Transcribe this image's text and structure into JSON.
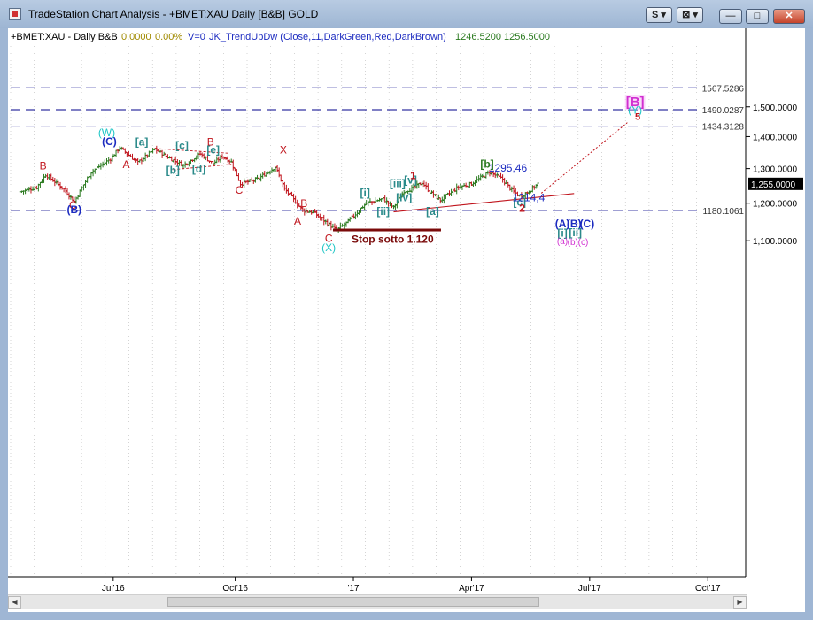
{
  "window": {
    "title": "TradeStation Chart Analysis - +BMET:XAU Daily [B&B] GOLD",
    "buttons": {
      "style_label": "S",
      "tools_label": "⊠",
      "minimize_label": "—",
      "maximize_label": "□",
      "close_label": "✕"
    }
  },
  "header": {
    "symbol": "+BMET:XAU - Daily  B&B",
    "change": "0.0000",
    "change_pct": "0.00%",
    "volume": "V=0",
    "indicator": "JK_TrendUpDw (Close,11,DarkGreen,Red,DarkBrown)",
    "ind_val1": "1246.5200",
    "ind_val2": "1256.5000"
  },
  "colors": {
    "up_bar": "#2a7a1f",
    "down_bar": "#c0141c",
    "level_line": "#00008b",
    "red": "#c0141c",
    "blue": "#1c2bc0",
    "teal": "#2a8a8a",
    "green": "#2a7a1f",
    "cyan": "#1fc6c6",
    "magenta": "#d12fd1"
  },
  "chart_data": {
    "type": "ohlc-bar",
    "y_scale": "log",
    "ylim": [
      1045,
      1625
    ],
    "x_ticks": [
      "Jul'16",
      "Oct'16",
      "'17",
      "Apr'17",
      "Jul'17",
      "Oct'17"
    ],
    "y_ticks": [
      "1,100.0000",
      "1,200.0000",
      "1,300.0000",
      "1,400.0000",
      "1,500.0000"
    ],
    "last_price": "1,255.0000",
    "levels": [
      {
        "value": 1567.5286,
        "label": "1567.5286"
      },
      {
        "value": 1490.0287,
        "label": "1490.0287"
      },
      {
        "value": 1434.3128,
        "label": "1434.3128"
      },
      {
        "value": 1180.1061,
        "label": "1180.1061"
      }
    ],
    "trend_line": {
      "label": "1214,4"
    },
    "projection": {
      "label": "projection"
    },
    "triangle": {
      "label": "triangle"
    },
    "stop_box": {
      "label": "Stop sotto 1.120"
    },
    "price_labels": [
      "1295,46",
      "1214,4"
    ],
    "waves": [
      {
        "text": "(W)",
        "color": "cyan"
      },
      {
        "text": "(C)",
        "color": "blue"
      },
      {
        "text": "B",
        "color": "red"
      },
      {
        "text": "C",
        "color": "red"
      },
      {
        "text": "(B)",
        "color": "blue"
      },
      {
        "text": "[a]",
        "color": "teal"
      },
      {
        "text": "A",
        "color": "red"
      },
      {
        "text": "[c]",
        "color": "teal"
      },
      {
        "text": "B",
        "color": "red"
      },
      {
        "text": "[e]",
        "color": "teal"
      },
      {
        "text": "[b]",
        "color": "teal"
      },
      {
        "text": "[d]",
        "color": "teal"
      },
      {
        "text": "C",
        "color": "red"
      },
      {
        "text": "X",
        "color": "red"
      },
      {
        "text": "B",
        "color": "red"
      },
      {
        "text": "A",
        "color": "red"
      },
      {
        "text": "C",
        "color": "red"
      },
      {
        "text": "(X)",
        "color": "cyan"
      },
      {
        "text": "[i]",
        "color": "teal"
      },
      {
        "text": "[ii]",
        "color": "teal"
      },
      {
        "text": "[iii]",
        "color": "teal"
      },
      {
        "text": "[iv]",
        "color": "teal"
      },
      {
        "text": "[v]",
        "color": "teal"
      },
      {
        "text": "1",
        "color": "red"
      },
      {
        "text": "[a]",
        "color": "teal"
      },
      {
        "text": "[b]",
        "color": "green"
      },
      {
        "text": "1295,46",
        "color": "blue"
      },
      {
        "text": "[c]",
        "color": "teal"
      },
      {
        "text": "2",
        "color": "red"
      },
      {
        "text": "1214,4",
        "color": "blue"
      },
      {
        "text": "[B]",
        "color": "magenta"
      },
      {
        "text": "(Y)",
        "color": "cyan"
      },
      {
        "text": "5",
        "color": "red"
      },
      {
        "text": "(A)",
        "color": "blue"
      },
      {
        "text": "(B)",
        "color": "blue"
      },
      {
        "text": "(C)",
        "color": "blue"
      },
      {
        "text": "[i]",
        "color": "teal"
      },
      {
        "text": "[ii]",
        "color": "teal"
      },
      {
        "text": "(a)",
        "color": "magenta"
      },
      {
        "text": "(b)",
        "color": "magenta"
      },
      {
        "text": "(c)",
        "color": "magenta"
      }
    ],
    "price_path": [
      {
        "date": "2016-04-20",
        "close": 1232
      },
      {
        "date": "2016-05-03",
        "close": 1245
      },
      {
        "date": "2016-05-10",
        "close": 1282
      },
      {
        "date": "2016-05-24",
        "close": 1240
      },
      {
        "date": "2016-06-01",
        "close": 1205
      },
      {
        "date": "2016-06-14",
        "close": 1290
      },
      {
        "date": "2016-06-29",
        "close": 1330
      },
      {
        "date": "2016-07-06",
        "close": 1365
      },
      {
        "date": "2016-07-20",
        "close": 1318
      },
      {
        "date": "2016-08-02",
        "close": 1360
      },
      {
        "date": "2016-08-12",
        "close": 1335
      },
      {
        "date": "2016-08-24",
        "close": 1310
      },
      {
        "date": "2016-09-06",
        "close": 1345
      },
      {
        "date": "2016-09-16",
        "close": 1315
      },
      {
        "date": "2016-09-23",
        "close": 1338
      },
      {
        "date": "2016-09-30",
        "close": 1320
      },
      {
        "date": "2016-10-07",
        "close": 1255
      },
      {
        "date": "2016-10-20",
        "close": 1268
      },
      {
        "date": "2016-11-03",
        "close": 1305
      },
      {
        "date": "2016-11-10",
        "close": 1240
      },
      {
        "date": "2016-11-24",
        "close": 1180
      },
      {
        "date": "2016-12-02",
        "close": 1175
      },
      {
        "date": "2016-12-20",
        "close": 1127
      },
      {
        "date": "2016-12-29",
        "close": 1150
      },
      {
        "date": "2017-01-12",
        "close": 1200
      },
      {
        "date": "2017-01-25",
        "close": 1212
      },
      {
        "date": "2017-02-02",
        "close": 1188
      },
      {
        "date": "2017-02-10",
        "close": 1234
      },
      {
        "date": "2017-02-16",
        "close": 1241
      },
      {
        "date": "2017-02-24",
        "close": 1258
      },
      {
        "date": "2017-03-02",
        "close": 1232
      },
      {
        "date": "2017-03-10",
        "close": 1208
      },
      {
        "date": "2017-03-24",
        "close": 1246
      },
      {
        "date": "2017-04-03",
        "close": 1255
      },
      {
        "date": "2017-04-17",
        "close": 1290
      },
      {
        "date": "2017-04-27",
        "close": 1268
      },
      {
        "date": "2017-05-04",
        "close": 1236
      },
      {
        "date": "2017-05-10",
        "close": 1220
      },
      {
        "date": "2017-05-16",
        "close": 1230
      },
      {
        "date": "2017-05-24",
        "close": 1255
      }
    ]
  }
}
